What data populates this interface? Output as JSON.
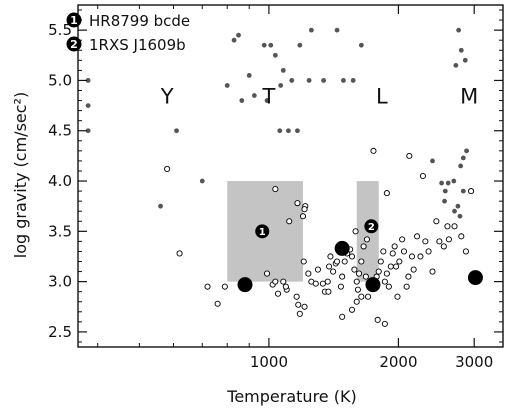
{
  "chart_data": {
    "type": "scatter",
    "title": "",
    "xlabel": "Temperature (K)",
    "ylabel": "log gravity (cm/sec²)",
    "x_scale": "log",
    "xlim": [
      360,
      3500
    ],
    "ylim": [
      2.35,
      5.75
    ],
    "x_ticks": [
      {
        "value": 1000,
        "label": "1000"
      },
      {
        "value": 2000,
        "label": "2000"
      },
      {
        "value": 3000,
        "label": "3000"
      }
    ],
    "y_ticks": [
      {
        "value": 2.5,
        "label": "2.5"
      },
      {
        "value": 3.0,
        "label": "3.0"
      },
      {
        "value": 3.5,
        "label": "3.5"
      },
      {
        "value": 4.0,
        "label": "4.0"
      },
      {
        "value": 4.5,
        "label": "4.5"
      },
      {
        "value": 5.0,
        "label": "5.0"
      },
      {
        "value": 5.5,
        "label": "5.5"
      }
    ],
    "grid": false,
    "legend": {
      "placement": "top-left",
      "entries": [
        {
          "number": "1",
          "label": "HR8799 bcde"
        },
        {
          "number": "2",
          "label": "1RXS J1609b"
        }
      ]
    },
    "regions": [
      {
        "number": "1",
        "x_range": [
          800,
          1200
        ],
        "y_range": [
          3.0,
          4.0
        ],
        "marker": {
          "x": 965,
          "y": 3.5
        },
        "color": "#c4c4c4"
      },
      {
        "number": "2",
        "x_range": [
          1600,
          1800
        ],
        "y_range": [
          3.0,
          4.0
        ],
        "marker": {
          "x": 1730,
          "y": 3.55
        },
        "color": "#c4c4c4"
      }
    ],
    "spectral_classes": [
      {
        "label": "Y",
        "x": 580,
        "y": 4.85
      },
      {
        "label": "T",
        "x": 1000,
        "y": 4.85
      },
      {
        "label": "L",
        "x": 1830,
        "y": 4.85
      },
      {
        "label": "M",
        "x": 2920,
        "y": 4.85
      }
    ],
    "series": [
      {
        "style": "filled-gray",
        "color": "#555555",
        "points": [
          [
            380,
            5.0
          ],
          [
            380,
            4.75
          ],
          [
            380,
            4.5
          ],
          [
            610,
            4.5
          ],
          [
            560,
            3.75
          ],
          [
            700,
            4.0
          ],
          [
            830,
            5.4
          ],
          [
            850,
            5.45
          ],
          [
            800,
            4.95
          ],
          [
            865,
            4.8
          ],
          [
            900,
            5.05
          ],
          [
            925,
            4.85
          ],
          [
            990,
            4.8
          ],
          [
            975,
            5.35
          ],
          [
            1010,
            5.35
          ],
          [
            1035,
            5.25
          ],
          [
            1060,
            4.5
          ],
          [
            1065,
            4.95
          ],
          [
            1080,
            5.1
          ],
          [
            1110,
            4.5
          ],
          [
            1130,
            5.0
          ],
          [
            1165,
            4.5
          ],
          [
            1180,
            5.35
          ],
          [
            1240,
            5.0
          ],
          [
            1255,
            5.5
          ],
          [
            1340,
            5.0
          ],
          [
            1440,
            5.5
          ],
          [
            1490,
            5.0
          ],
          [
            1570,
            5.0
          ],
          [
            1640,
            5.35
          ],
          [
            2760,
            5.5
          ],
          [
            2800,
            5.3
          ],
          [
            2860,
            5.2
          ],
          [
            2720,
            5.15
          ],
          [
            2880,
            4.3
          ],
          [
            2830,
            4.23
          ],
          [
            2790,
            4.15
          ],
          [
            2690,
            4.0
          ],
          [
            2610,
            3.98
          ],
          [
            2520,
            3.98
          ],
          [
            2570,
            3.9
          ],
          [
            2560,
            3.8
          ],
          [
            2830,
            3.9
          ],
          [
            2750,
            3.75
          ],
          [
            2700,
            3.7
          ],
          [
            2780,
            3.65
          ],
          [
            2400,
            4.2
          ]
        ]
      },
      {
        "style": "open",
        "color": "#000000",
        "points": [
          [
            580,
            4.12
          ],
          [
            620,
            3.28
          ],
          [
            900,
            2.97
          ],
          [
            790,
            2.95
          ],
          [
            720,
            2.95
          ],
          [
            760,
            2.78
          ],
          [
            1035,
            3.92
          ],
          [
            1020,
            2.97
          ],
          [
            990,
            3.08
          ],
          [
            1035,
            3.0
          ],
          [
            1080,
            3.0
          ],
          [
            1050,
            2.88
          ],
          [
            1100,
            2.92
          ],
          [
            1095,
            2.95
          ],
          [
            1160,
            2.85
          ],
          [
            1115,
            3.6
          ],
          [
            1200,
            3.65
          ],
          [
            1165,
            3.78
          ],
          [
            1215,
            3.75
          ],
          [
            1210,
            3.72
          ],
          [
            1235,
            3.08
          ],
          [
            1205,
            3.2
          ],
          [
            1255,
            3.0
          ],
          [
            1170,
            2.77
          ],
          [
            1180,
            2.68
          ],
          [
            1210,
            2.75
          ],
          [
            1285,
            2.98
          ],
          [
            1300,
            3.12
          ],
          [
            1335,
            2.98
          ],
          [
            1350,
            2.9
          ],
          [
            1375,
            2.9
          ],
          [
            1370,
            3.0
          ],
          [
            1380,
            3.15
          ],
          [
            1390,
            3.25
          ],
          [
            1410,
            3.1
          ],
          [
            1430,
            3.18
          ],
          [
            1440,
            3.2
          ],
          [
            1470,
            2.95
          ],
          [
            1480,
            3.05
          ],
          [
            1500,
            3.2
          ],
          [
            1520,
            3.28
          ],
          [
            1545,
            3.32
          ],
          [
            1560,
            3.25
          ],
          [
            1580,
            3.12
          ],
          [
            1600,
            3.0
          ],
          [
            1610,
            2.92
          ],
          [
            1620,
            3.08
          ],
          [
            1640,
            3.2
          ],
          [
            1660,
            3.35
          ],
          [
            1680,
            3.05
          ],
          [
            1560,
            2.72
          ],
          [
            1600,
            2.8
          ],
          [
            1640,
            2.85
          ],
          [
            1700,
            2.85
          ],
          [
            1750,
            2.95
          ],
          [
            1780,
            3.05
          ],
          [
            1800,
            3.1
          ],
          [
            1820,
            3.2
          ],
          [
            1845,
            3.3
          ],
          [
            1860,
            3.0
          ],
          [
            1880,
            3.08
          ],
          [
            1900,
            2.95
          ],
          [
            1920,
            3.15
          ],
          [
            1940,
            3.28
          ],
          [
            1960,
            3.35
          ],
          [
            1975,
            3.15
          ],
          [
            1990,
            2.85
          ],
          [
            2010,
            3.2
          ],
          [
            2040,
            3.42
          ],
          [
            2060,
            3.3
          ],
          [
            2090,
            2.95
          ],
          [
            2110,
            3.05
          ],
          [
            2150,
            3.25
          ],
          [
            2170,
            3.12
          ],
          [
            2210,
            3.45
          ],
          [
            2250,
            3.25
          ],
          [
            2310,
            3.4
          ],
          [
            2350,
            3.3
          ],
          [
            2400,
            3.1
          ],
          [
            2450,
            3.6
          ],
          [
            2490,
            3.4
          ],
          [
            2550,
            3.35
          ],
          [
            2620,
            3.42
          ],
          [
            2700,
            3.55
          ],
          [
            2800,
            3.45
          ],
          [
            2870,
            3.3
          ],
          [
            1480,
            2.65
          ],
          [
            1590,
            3.5
          ],
          [
            1690,
            3.42
          ],
          [
            1790,
            2.62
          ],
          [
            1860,
            2.58
          ],
          [
            1880,
            3.88
          ],
          [
            1750,
            4.3
          ],
          [
            2120,
            4.25
          ],
          [
            2280,
            4.05
          ],
          [
            2600,
            3.55
          ],
          [
            2950,
            3.9
          ]
        ]
      },
      {
        "style": "filled-black-large",
        "color": "#000000",
        "points": [
          [
            880,
            2.97
          ],
          [
            1480,
            3.33
          ],
          [
            1745,
            2.97
          ],
          [
            3020,
            3.04
          ]
        ]
      }
    ]
  }
}
